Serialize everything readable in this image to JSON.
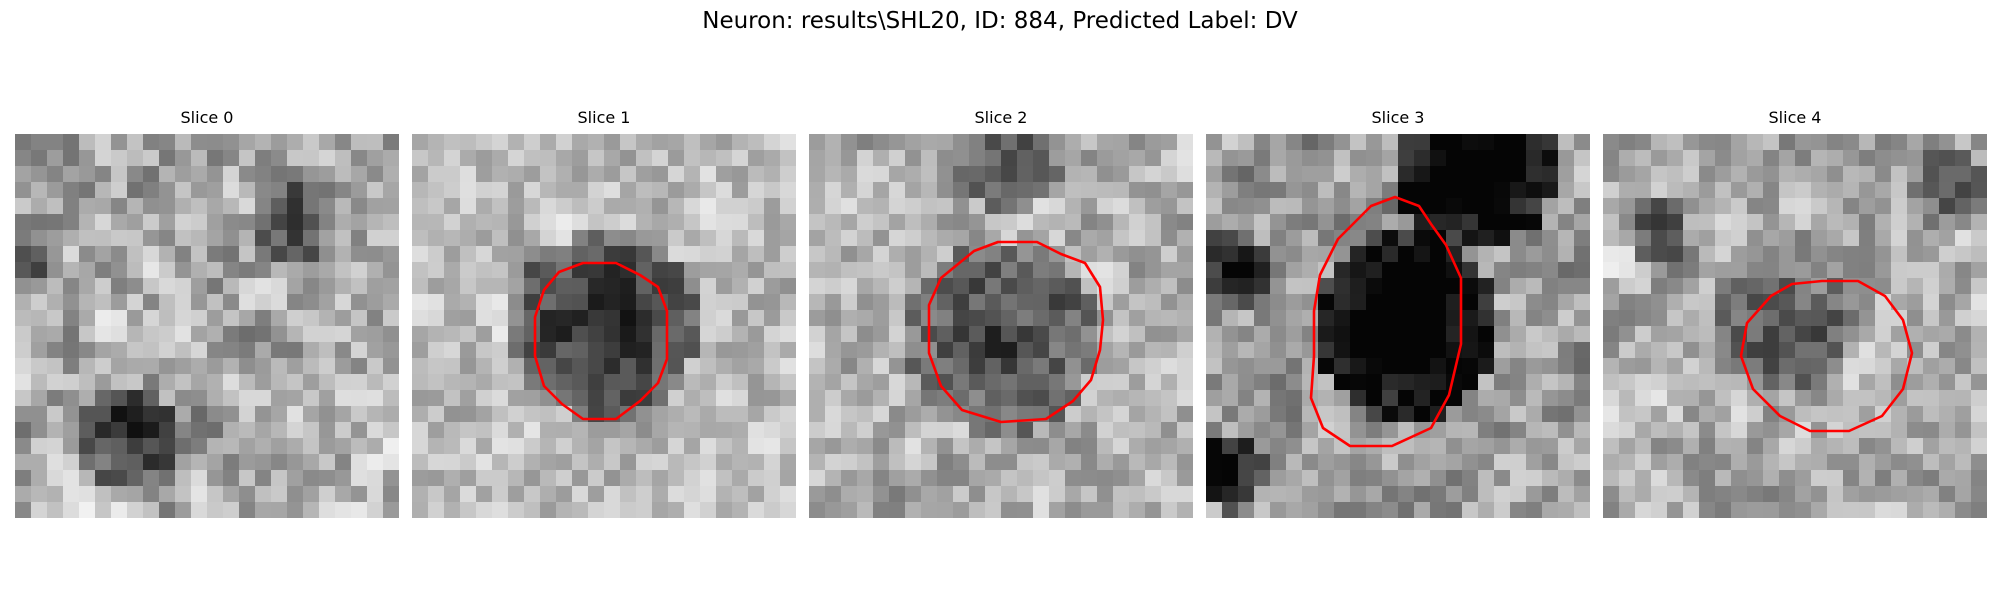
{
  "figure": {
    "title": "Neuron: results\\SHL20, ID: 884, Predicted Label: DV",
    "contour_color": "#ff0000"
  },
  "panels": [
    {
      "title": "Slice 0",
      "has_contour": false
    },
    {
      "title": "Slice 1",
      "has_contour": true
    },
    {
      "title": "Slice 2",
      "has_contour": true
    },
    {
      "title": "Slice 3",
      "has_contour": true
    },
    {
      "title": "Slice 4",
      "has_contour": true
    }
  ]
}
